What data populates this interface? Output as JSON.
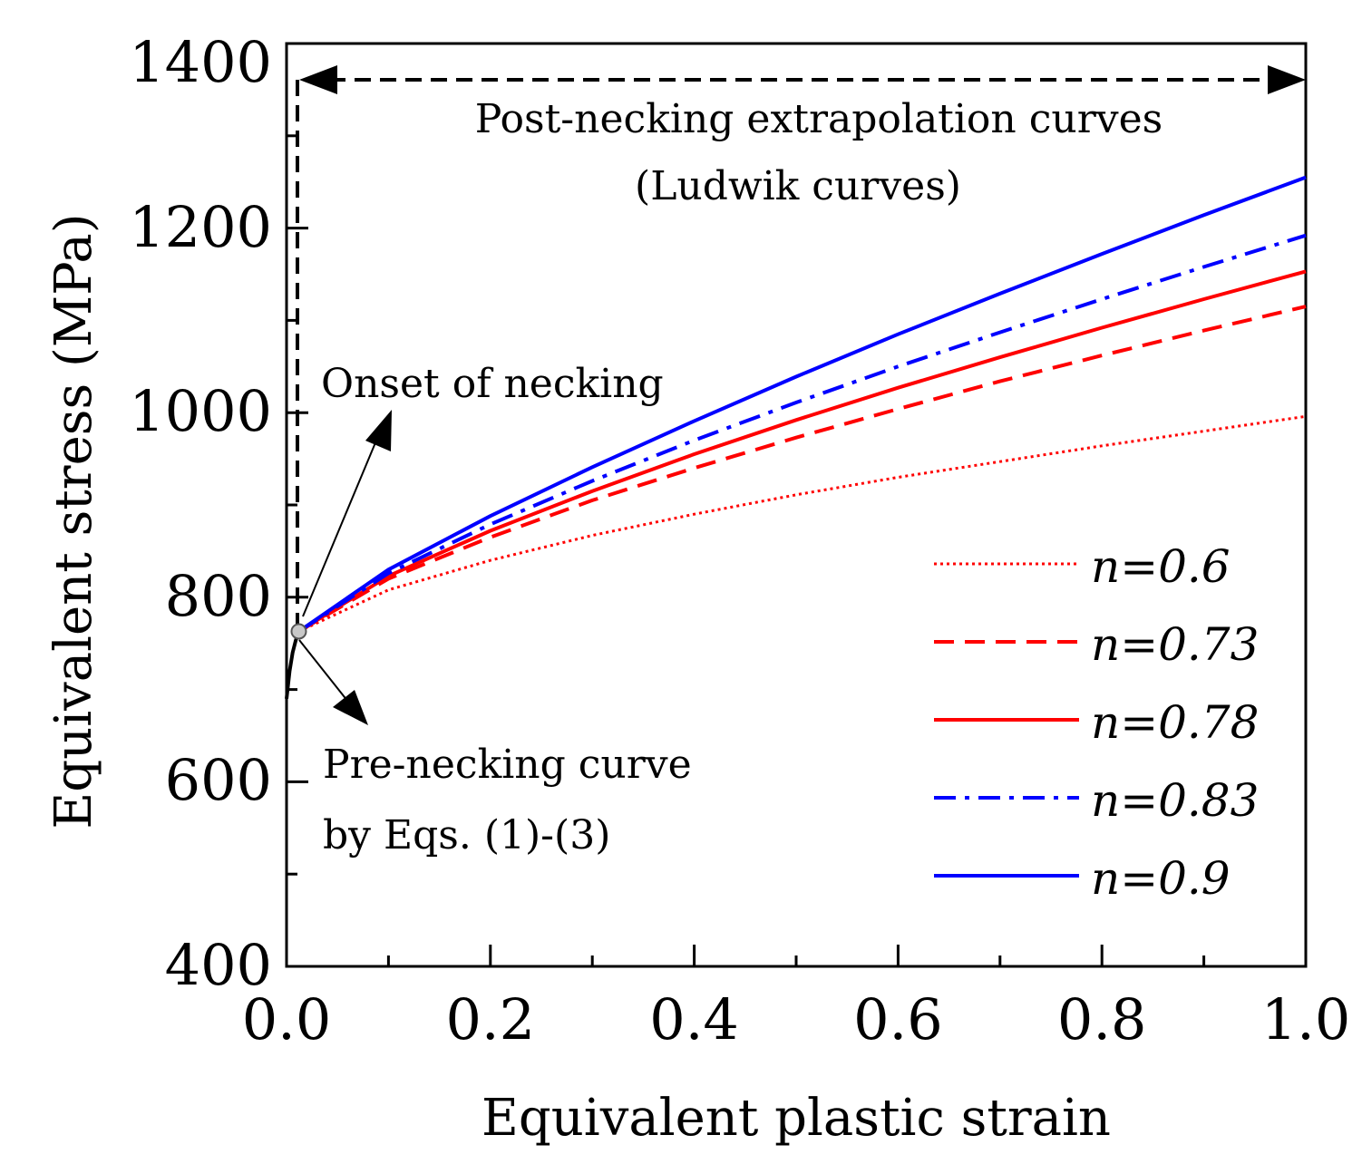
{
  "chart_data": {
    "type": "line",
    "title": "",
    "xlabel": "Equivalent plastic strain",
    "ylabel": "Equivalent stress (MPa)",
    "xlim": [
      0.0,
      1.0
    ],
    "ylim": [
      400,
      1400
    ],
    "x_ticks": [
      0.0,
      0.2,
      0.4,
      0.6,
      0.8,
      1.0
    ],
    "x_tick_labels": [
      "0.0",
      "0.2",
      "0.4",
      "0.6",
      "0.8",
      "1.0"
    ],
    "y_ticks": [
      400,
      600,
      800,
      1000,
      1200,
      1400
    ],
    "y_tick_labels": [
      "400",
      "600",
      "800",
      "1000",
      "1200",
      "1400"
    ],
    "necking_point": {
      "x": 0.012,
      "y": 763
    },
    "pre_necking_curve": {
      "x": [
        0.0,
        0.003,
        0.006,
        0.009,
        0.012
      ],
      "y": [
        690,
        720,
        740,
        753,
        763
      ]
    },
    "series": [
      {
        "name": "n=0.6",
        "color": "#ff0000",
        "style": "dotted",
        "x": [
          0.012,
          0.1,
          0.2,
          0.3,
          0.4,
          0.5,
          0.6,
          0.7,
          0.8,
          0.9,
          1.0
        ],
        "y": [
          763,
          808,
          840,
          867,
          890,
          911,
          930,
          947,
          964,
          980,
          996
        ]
      },
      {
        "name": "n=0.73",
        "color": "#ff0000",
        "style": "dashed",
        "x": [
          0.012,
          0.1,
          0.2,
          0.3,
          0.4,
          0.5,
          0.6,
          0.7,
          0.8,
          0.9,
          1.0
        ],
        "y": [
          763,
          820,
          865,
          905,
          940,
          973,
          1004,
          1034,
          1062,
          1089,
          1115
        ]
      },
      {
        "name": "n=0.78",
        "color": "#ff0000",
        "style": "solid",
        "x": [
          0.012,
          0.1,
          0.2,
          0.3,
          0.4,
          0.5,
          0.6,
          0.7,
          0.8,
          0.9,
          1.0
        ],
        "y": [
          763,
          823,
          872,
          915,
          955,
          992,
          1027,
          1060,
          1092,
          1123,
          1153
        ]
      },
      {
        "name": "n=0.83",
        "color": "#0000ff",
        "style": "dashdot",
        "x": [
          0.012,
          0.1,
          0.2,
          0.3,
          0.4,
          0.5,
          0.6,
          0.7,
          0.8,
          0.9,
          1.0
        ],
        "y": [
          763,
          826,
          879,
          926,
          970,
          1011,
          1050,
          1087,
          1123,
          1158,
          1192
        ]
      },
      {
        "name": "n=0.9",
        "color": "#0000ff",
        "style": "solid",
        "x": [
          0.012,
          0.1,
          0.2,
          0.3,
          0.4,
          0.5,
          0.6,
          0.7,
          0.8,
          0.9,
          1.0
        ],
        "y": [
          763,
          830,
          888,
          941,
          991,
          1039,
          1085,
          1129,
          1172,
          1214,
          1255
        ]
      }
    ],
    "annotations": {
      "post_necking_line1": "Post-necking extrapolation curves",
      "post_necking_line2": "(Ludwik curves)",
      "onset": "Onset of necking",
      "pre_necking_line1": "Pre-necking curve",
      "pre_necking_line2": "by Eqs. (1)-(3)"
    },
    "legend_position": "right"
  }
}
